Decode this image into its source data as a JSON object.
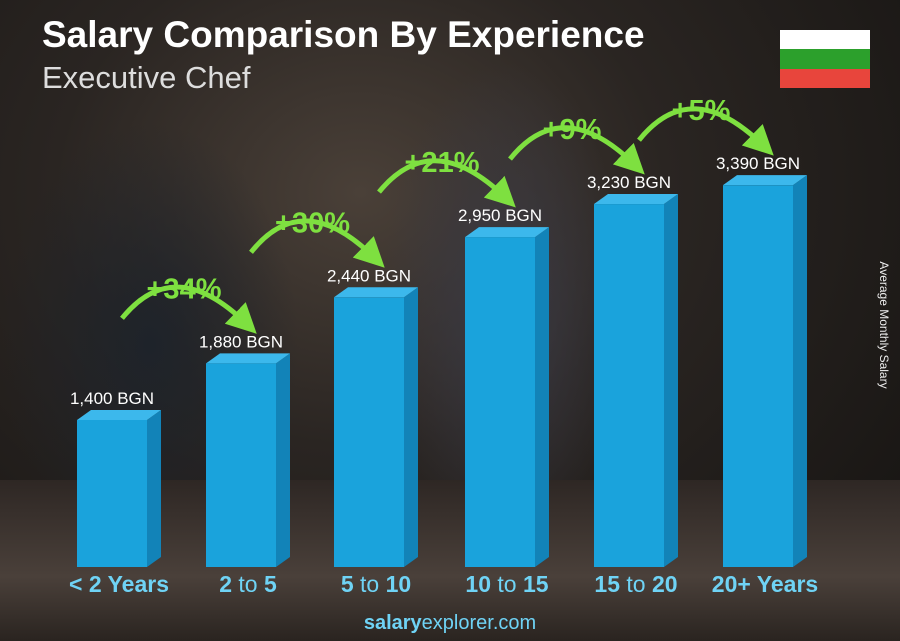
{
  "title": "Salary Comparison By Experience",
  "subtitle": "Executive Chef",
  "flag_colors": [
    "#ffffff",
    "#2ca02c",
    "#e8453c"
  ],
  "footer": {
    "bold": "salary",
    "rest": "explorer.com"
  },
  "colors": {
    "bar": "#1aa3dc",
    "bar_side": "#1283b8",
    "bar_top": "#3cb8ec",
    "category": "#6fd3f5",
    "increase": "#7ee040"
  },
  "chart_data": {
    "type": "bar",
    "title": "Salary Comparison By Experience",
    "subtitle": "Executive Chef",
    "ylabel": "Average Monthly Salary",
    "unit": "BGN",
    "categories": [
      {
        "a": "< 2 Years",
        "to": "",
        "b": ""
      },
      {
        "a": "2",
        "to": " to ",
        "b": "5"
      },
      {
        "a": "5",
        "to": " to ",
        "b": "10"
      },
      {
        "a": "10",
        "to": " to ",
        "b": "15"
      },
      {
        "a": "15",
        "to": " to ",
        "b": "20"
      },
      {
        "a": "20+ Years",
        "to": "",
        "b": ""
      }
    ],
    "values": [
      1400,
      1880,
      2440,
      2950,
      3230,
      3390
    ],
    "value_labels": [
      "1,400 BGN",
      "1,880 BGN",
      "2,440 BGN",
      "2,950 BGN",
      "3,230 BGN",
      "3,390 BGN"
    ],
    "increases": [
      "+34%",
      "+30%",
      "+21%",
      "+9%",
      "+5%"
    ],
    "grid": false
  }
}
